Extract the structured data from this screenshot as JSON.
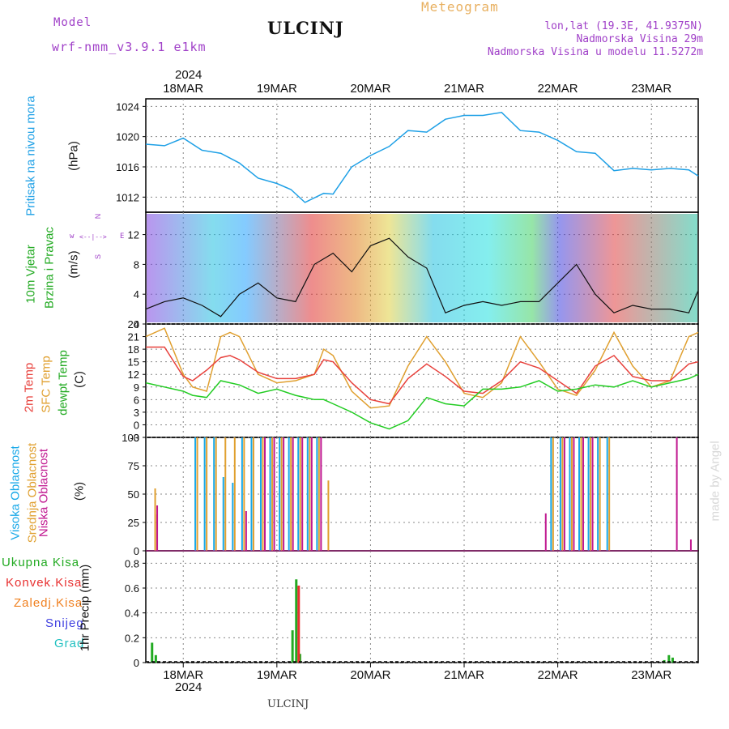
{
  "header": {
    "model_label": "Model",
    "model_name": "wrf-nmm_v3.9.1 e1km",
    "station": "ULCINJ",
    "meteogram": "Meteogram",
    "lonlat": "lon,lat (19.3E, 41.9375N)",
    "elevation": "Nadmorska Visina 29m",
    "model_elevation": "Nadmorska Visina u modelu 11.5272m",
    "footer_station": "ULCINJ",
    "watermark": "made by Angel"
  },
  "colors": {
    "pressure": "#1ea0e6",
    "temp2m": "#e8413c",
    "sfc": "#e0a030",
    "dew": "#22cc22",
    "high_cloud": "#18a8e8",
    "mid_cloud": "#e0a030",
    "low_cloud": "#c01890",
    "purple_text": "#a040c8",
    "orange_text": "#e8b060"
  },
  "axis": {
    "year": "2024",
    "days": [
      "18MAR",
      "19MAR",
      "20MAR",
      "21MAR",
      "22MAR",
      "23MAR"
    ],
    "x_range_days": [
      17.6,
      23.5
    ]
  },
  "panels": {
    "pressure": {
      "label1": "Pritisak na nivou mora",
      "unit": "(hPa)",
      "ticks": [
        "1024",
        "1020",
        "1016",
        "1012"
      ]
    },
    "wind": {
      "label1": "10m Vjetar",
      "label2": "Brzina i Pravac",
      "unit": "(m/s)",
      "ticks": [
        "12",
        "8",
        "4",
        "0"
      ],
      "compass_w": "w",
      "compass_e": "E",
      "compass_n": "N",
      "compass_s": "S",
      "compass_arrow": "<--|-->"
    },
    "temperature": {
      "label1": "2m Temp",
      "label2": "SFC Temp",
      "label3": "dewpt Temp",
      "unit": "(C)",
      "ticks": [
        "24",
        "21",
        "18",
        "15",
        "12",
        "9",
        "6",
        "3",
        "0",
        "-3"
      ]
    },
    "cloud": {
      "label1": "Visoka Oblacnost",
      "label2": "Srednja Oblacnost",
      "label3": "Niska Oblacnost",
      "unit": "(%)",
      "ticks": [
        "100",
        "75",
        "50",
        "25",
        "0"
      ]
    },
    "precip": {
      "legend": [
        "Ukupna Kisa",
        "Konvek.Kisa",
        "Zaledj.Kisa",
        "Snijeg",
        "Grad"
      ],
      "legend_colors": [
        "#22aa22",
        "#e83030",
        "#f08020",
        "#4040e0",
        "#20c0c0"
      ],
      "unit": "1hr Precip (mm)",
      "ticks": [
        "0.8",
        "0.6",
        "0.4",
        "0.2",
        "0"
      ]
    }
  },
  "chart_data": [
    {
      "type": "line",
      "title": "Pritisak na nivou mora",
      "ylabel": "(hPa)",
      "ylim": [
        1010,
        1025
      ],
      "x": [
        17.6,
        17.8,
        18.0,
        18.2,
        18.4,
        18.6,
        18.8,
        19.0,
        19.15,
        19.3,
        19.5,
        19.6,
        19.8,
        20.0,
        20.2,
        20.4,
        20.6,
        20.8,
        21.0,
        21.2,
        21.4,
        21.6,
        21.8,
        22.0,
        22.2,
        22.4,
        22.6,
        22.8,
        23.0,
        23.2,
        23.4,
        23.5
      ],
      "series": [
        {
          "values": [
            1019.0,
            1018.8,
            1019.8,
            1018.2,
            1017.8,
            1016.5,
            1014.5,
            1013.8,
            1013.0,
            1011.3,
            1012.5,
            1012.4,
            1016.0,
            1017.5,
            1018.7,
            1020.8,
            1020.6,
            1022.3,
            1022.8,
            1022.8,
            1023.2,
            1020.8,
            1020.6,
            1019.5,
            1018.0,
            1017.8,
            1015.5,
            1015.8,
            1015.6,
            1015.8,
            1015.6,
            1014.8
          ]
        }
      ]
    },
    {
      "type": "line",
      "title": "10m Vjetar Brzina i Pravac",
      "ylabel": "(m/s)",
      "ylim": [
        0,
        15
      ],
      "x": [
        17.6,
        17.8,
        18.0,
        18.2,
        18.4,
        18.6,
        18.8,
        19.0,
        19.2,
        19.4,
        19.6,
        19.8,
        20.0,
        20.2,
        20.4,
        20.6,
        20.8,
        21.0,
        21.2,
        21.4,
        21.6,
        21.8,
        22.0,
        22.2,
        22.4,
        22.6,
        22.8,
        23.0,
        23.2,
        23.4,
        23.5
      ],
      "series": [
        {
          "values": [
            2.0,
            3.0,
            3.5,
            2.5,
            1.0,
            4.0,
            5.5,
            3.5,
            3.0,
            8.0,
            9.5,
            7.0,
            10.5,
            11.5,
            9.0,
            7.5,
            1.5,
            2.5,
            3.0,
            2.5,
            3.0,
            3.0,
            5.5,
            8.0,
            4.0,
            1.5,
            2.5,
            2.0,
            2.0,
            1.5,
            4.5
          ]
        }
      ]
    },
    {
      "type": "line",
      "title": "Temperature",
      "ylabel": "(C)",
      "ylim": [
        -3,
        24
      ],
      "x": [
        17.6,
        17.8,
        18.0,
        18.1,
        18.25,
        18.4,
        18.5,
        18.6,
        18.8,
        19.0,
        19.2,
        19.4,
        19.5,
        19.6,
        19.8,
        20.0,
        20.2,
        20.4,
        20.6,
        20.8,
        21.0,
        21.2,
        21.4,
        21.6,
        21.8,
        22.0,
        22.2,
        22.4,
        22.6,
        22.8,
        23.0,
        23.2,
        23.4,
        23.5
      ],
      "series": [
        {
          "name": "2m Temp",
          "values": [
            18.5,
            18.5,
            11.5,
            10.5,
            13.0,
            16.0,
            16.5,
            15.5,
            12.5,
            11.0,
            11.0,
            12.0,
            15.5,
            15.0,
            10.0,
            6.0,
            5.0,
            11.0,
            14.5,
            11.5,
            8.0,
            7.5,
            10.5,
            15.0,
            13.5,
            10.5,
            7.5,
            14.0,
            16.5,
            11.5,
            10.5,
            10.5,
            14.5,
            15.0
          ]
        },
        {
          "name": "SFC Temp",
          "values": [
            21.0,
            23.0,
            12.0,
            9.0,
            8.0,
            21.0,
            22.0,
            21.0,
            12.0,
            10.0,
            10.5,
            12.0,
            18.0,
            16.5,
            8.0,
            4.0,
            4.5,
            14.0,
            21.0,
            15.0,
            7.5,
            6.5,
            10.0,
            21.0,
            15.0,
            8.5,
            7.0,
            13.0,
            22.0,
            14.0,
            9.0,
            10.5,
            21.0,
            22.0
          ]
        },
        {
          "name": "dewpt Temp",
          "values": [
            10.0,
            9.0,
            8.0,
            7.0,
            6.5,
            10.5,
            10.0,
            9.5,
            7.5,
            8.5,
            7.0,
            6.0,
            6.0,
            5.0,
            3.0,
            0.5,
            -1.0,
            1.0,
            6.5,
            5.0,
            4.5,
            8.5,
            8.5,
            9.0,
            10.5,
            8.0,
            8.5,
            9.5,
            9.0,
            10.5,
            9.0,
            10.0,
            11.0,
            12.0
          ]
        }
      ]
    },
    {
      "type": "bar",
      "title": "Oblacnost",
      "ylabel": "(%)",
      "ylim": [
        0,
        100
      ],
      "x": [
        17.7,
        17.72,
        18.15,
        18.25,
        18.35,
        18.45,
        18.55,
        18.65,
        18.75,
        18.85,
        18.95,
        19.05,
        19.15,
        19.25,
        19.35,
        19.45,
        19.55,
        21.85,
        21.95,
        22.05,
        22.15,
        22.25,
        22.35,
        22.45,
        22.55,
        23.25,
        23.4
      ],
      "series": [
        {
          "name": "Visoka Oblacnost",
          "values": [
            0,
            0,
            100,
            100,
            100,
            65,
            60,
            100,
            100,
            100,
            100,
            100,
            100,
            100,
            100,
            100,
            0,
            0,
            100,
            100,
            100,
            100,
            100,
            100,
            100,
            0,
            0
          ]
        },
        {
          "name": "Srednja Oblacnost",
          "values": [
            55,
            32,
            100,
            100,
            100,
            100,
            100,
            100,
            100,
            100,
            100,
            100,
            100,
            100,
            100,
            100,
            62,
            0,
            100,
            100,
            100,
            100,
            100,
            100,
            100,
            0,
            0
          ]
        },
        {
          "name": "Niska Oblacnost",
          "values": [
            40,
            0,
            0,
            0,
            0,
            0,
            0,
            35,
            0,
            100,
            100,
            100,
            100,
            100,
            100,
            100,
            0,
            33,
            0,
            100,
            100,
            100,
            100,
            0,
            0,
            100,
            10
          ]
        }
      ]
    },
    {
      "type": "bar",
      "title": "1hr Precip",
      "ylabel": "1hr Precip (mm)",
      "ylim": [
        0,
        0.9
      ],
      "x": [
        17.68,
        17.72,
        19.18,
        19.22,
        19.26,
        23.15,
        23.2,
        23.24
      ],
      "series": [
        {
          "name": "Ukupna Kisa",
          "values": [
            0.16,
            0.06,
            0.26,
            0.67,
            0.07,
            0.02,
            0.06,
            0.04
          ]
        },
        {
          "name": "Konvek.Kisa",
          "values": [
            0.0,
            0.0,
            0.0,
            0.62,
            0.0,
            0.0,
            0.0,
            0.0
          ]
        }
      ]
    }
  ]
}
